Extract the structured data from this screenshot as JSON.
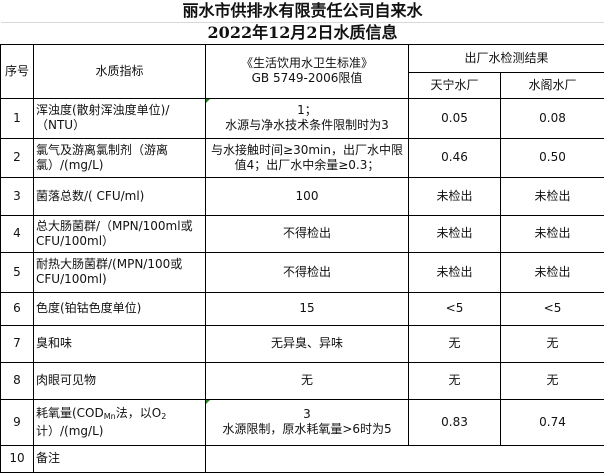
{
  "title_line1": "丽水市供排水有限责任公司自来水",
  "title_line2": "2022年12月2日水质信息",
  "headers": {
    "no": "序号",
    "indicator": "水质指标",
    "standard_line1": "《生活饮用水卫生标准》",
    "standard_line2": "GB 5749-2006限值",
    "results": "出厂水检测结果",
    "plant1": "天宁水厂",
    "plant2": "水阁水厂"
  },
  "rows": [
    {
      "no": "1",
      "indicator": "浑浊度(散射浑浊度单位)/（NTU）",
      "limit_line1": "1；",
      "limit_line2": "水源与净水技术条件限制时为3",
      "plant1": "0.05",
      "plant2": "0.08"
    },
    {
      "no": "2",
      "indicator": "氯气及游离氯制剂（游离氯）/(mg/L)",
      "limit": "与水接触时间≥30min，出厂水中限值4；出厂水中余量≥0.3；",
      "plant1": "0.46",
      "plant2": "0.50"
    },
    {
      "no": "3",
      "indicator": "菌落总数/( CFU/ml)",
      "limit": "100",
      "plant1": "未检出",
      "plant2": "未检出"
    },
    {
      "no": "4",
      "indicator": "总大肠菌群/（MPN/100ml或CFU/100ml）",
      "limit": "不得检出",
      "plant1": "未检出",
      "plant2": "未检出"
    },
    {
      "no": "5",
      "indicator": "耐热大肠菌群/(MPN/100或CFU/100ml)",
      "limit": "不得检出",
      "plant1": "未检出",
      "plant2": "未检出"
    },
    {
      "no": "6",
      "indicator": "色度(铂钴色度单位)",
      "limit": "15",
      "plant1": "<5",
      "plant2": "<5"
    },
    {
      "no": "7",
      "indicator": "臭和味",
      "limit": "无异臭、异味",
      "plant1": "无",
      "plant2": "无"
    },
    {
      "no": "8",
      "indicator": "肉眼可见物",
      "limit": "无",
      "plant1": "无",
      "plant2": "无"
    },
    {
      "no": "9",
      "indicator_a": "耗氧量(COD",
      "indicator_sub": "Mn",
      "indicator_b": "法，以O",
      "indicator_sub2": "2",
      "indicator_c": "计）/(mg/L)",
      "limit_line1": "3",
      "limit_line2": "水源限制，原水耗氧量>6时为5",
      "plant1": "0.83",
      "plant2": "0.74"
    },
    {
      "no": "10",
      "indicator": "备注",
      "limit": ""
    }
  ]
}
